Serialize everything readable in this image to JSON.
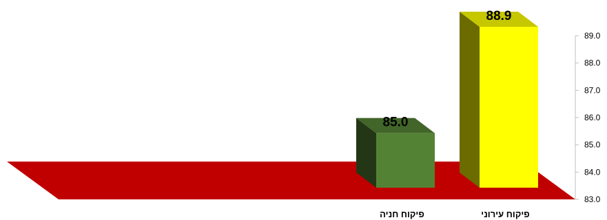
{
  "chart_data": {
    "type": "bar",
    "style": "3d-column",
    "categories": [
      "פיקוח חניה",
      "פיקוח עירוני"
    ],
    "values": [
      85.0,
      88.9
    ],
    "value_labels": [
      "85.0",
      "88.9"
    ],
    "colors": [
      "#548235",
      "#ffff00"
    ],
    "floor_color": "#c00000",
    "ylim": [
      83.0,
      89.0
    ],
    "yticks": [
      "83.0",
      "84.0",
      "85.0",
      "86.0",
      "87.0",
      "88.0",
      "89.0"
    ],
    "y_axis_side": "right",
    "grid": false,
    "legend": "none",
    "title": "",
    "xlabel": "",
    "ylabel": ""
  }
}
